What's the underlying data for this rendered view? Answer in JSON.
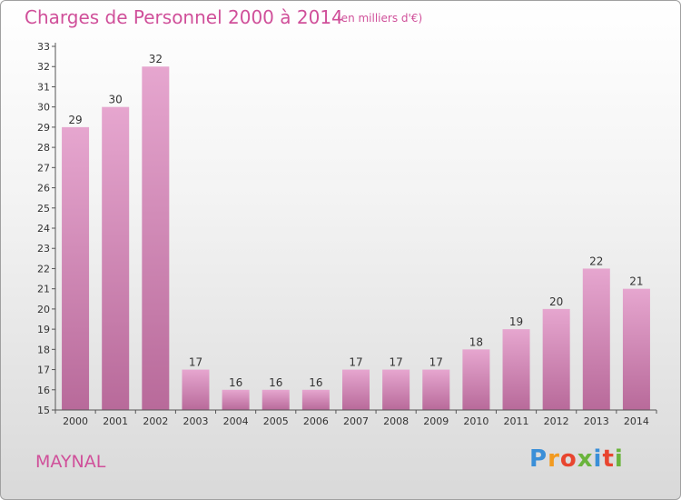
{
  "title": "Charges de Personnel 2000 à 2014",
  "subtitle": "(en milliers d'€)",
  "commune": "MAYNAL",
  "logo": {
    "letters": [
      "P",
      "r",
      "o",
      "x",
      "i",
      "t",
      "i"
    ],
    "colors": [
      "#3a8fd8",
      "#f29a1f",
      "#e8452f",
      "#6ab43c",
      "#3a8fd8",
      "#e8452f",
      "#6ab43c"
    ]
  },
  "colors": {
    "bar_top": "#e6a6cf",
    "bar_bottom": "#b86a9a",
    "title": "#d0509a"
  },
  "chart_data": {
    "type": "bar",
    "title": "Charges de Personnel 2000 à 2014",
    "subtitle": "(en milliers d'€)",
    "categories": [
      "2000",
      "2001",
      "2002",
      "2003",
      "2004",
      "2005",
      "2006",
      "2007",
      "2008",
      "2009",
      "2010",
      "2011",
      "2012",
      "2013",
      "2014"
    ],
    "values": [
      29,
      30,
      32,
      17,
      16,
      16,
      16,
      17,
      17,
      17,
      18,
      19,
      20,
      22,
      21
    ],
    "ylim": [
      15,
      33
    ],
    "yticks": [
      15,
      16,
      17,
      18,
      19,
      20,
      21,
      22,
      23,
      24,
      25,
      26,
      27,
      28,
      29,
      30,
      31,
      32,
      33
    ],
    "grid": false,
    "legend": "none"
  }
}
